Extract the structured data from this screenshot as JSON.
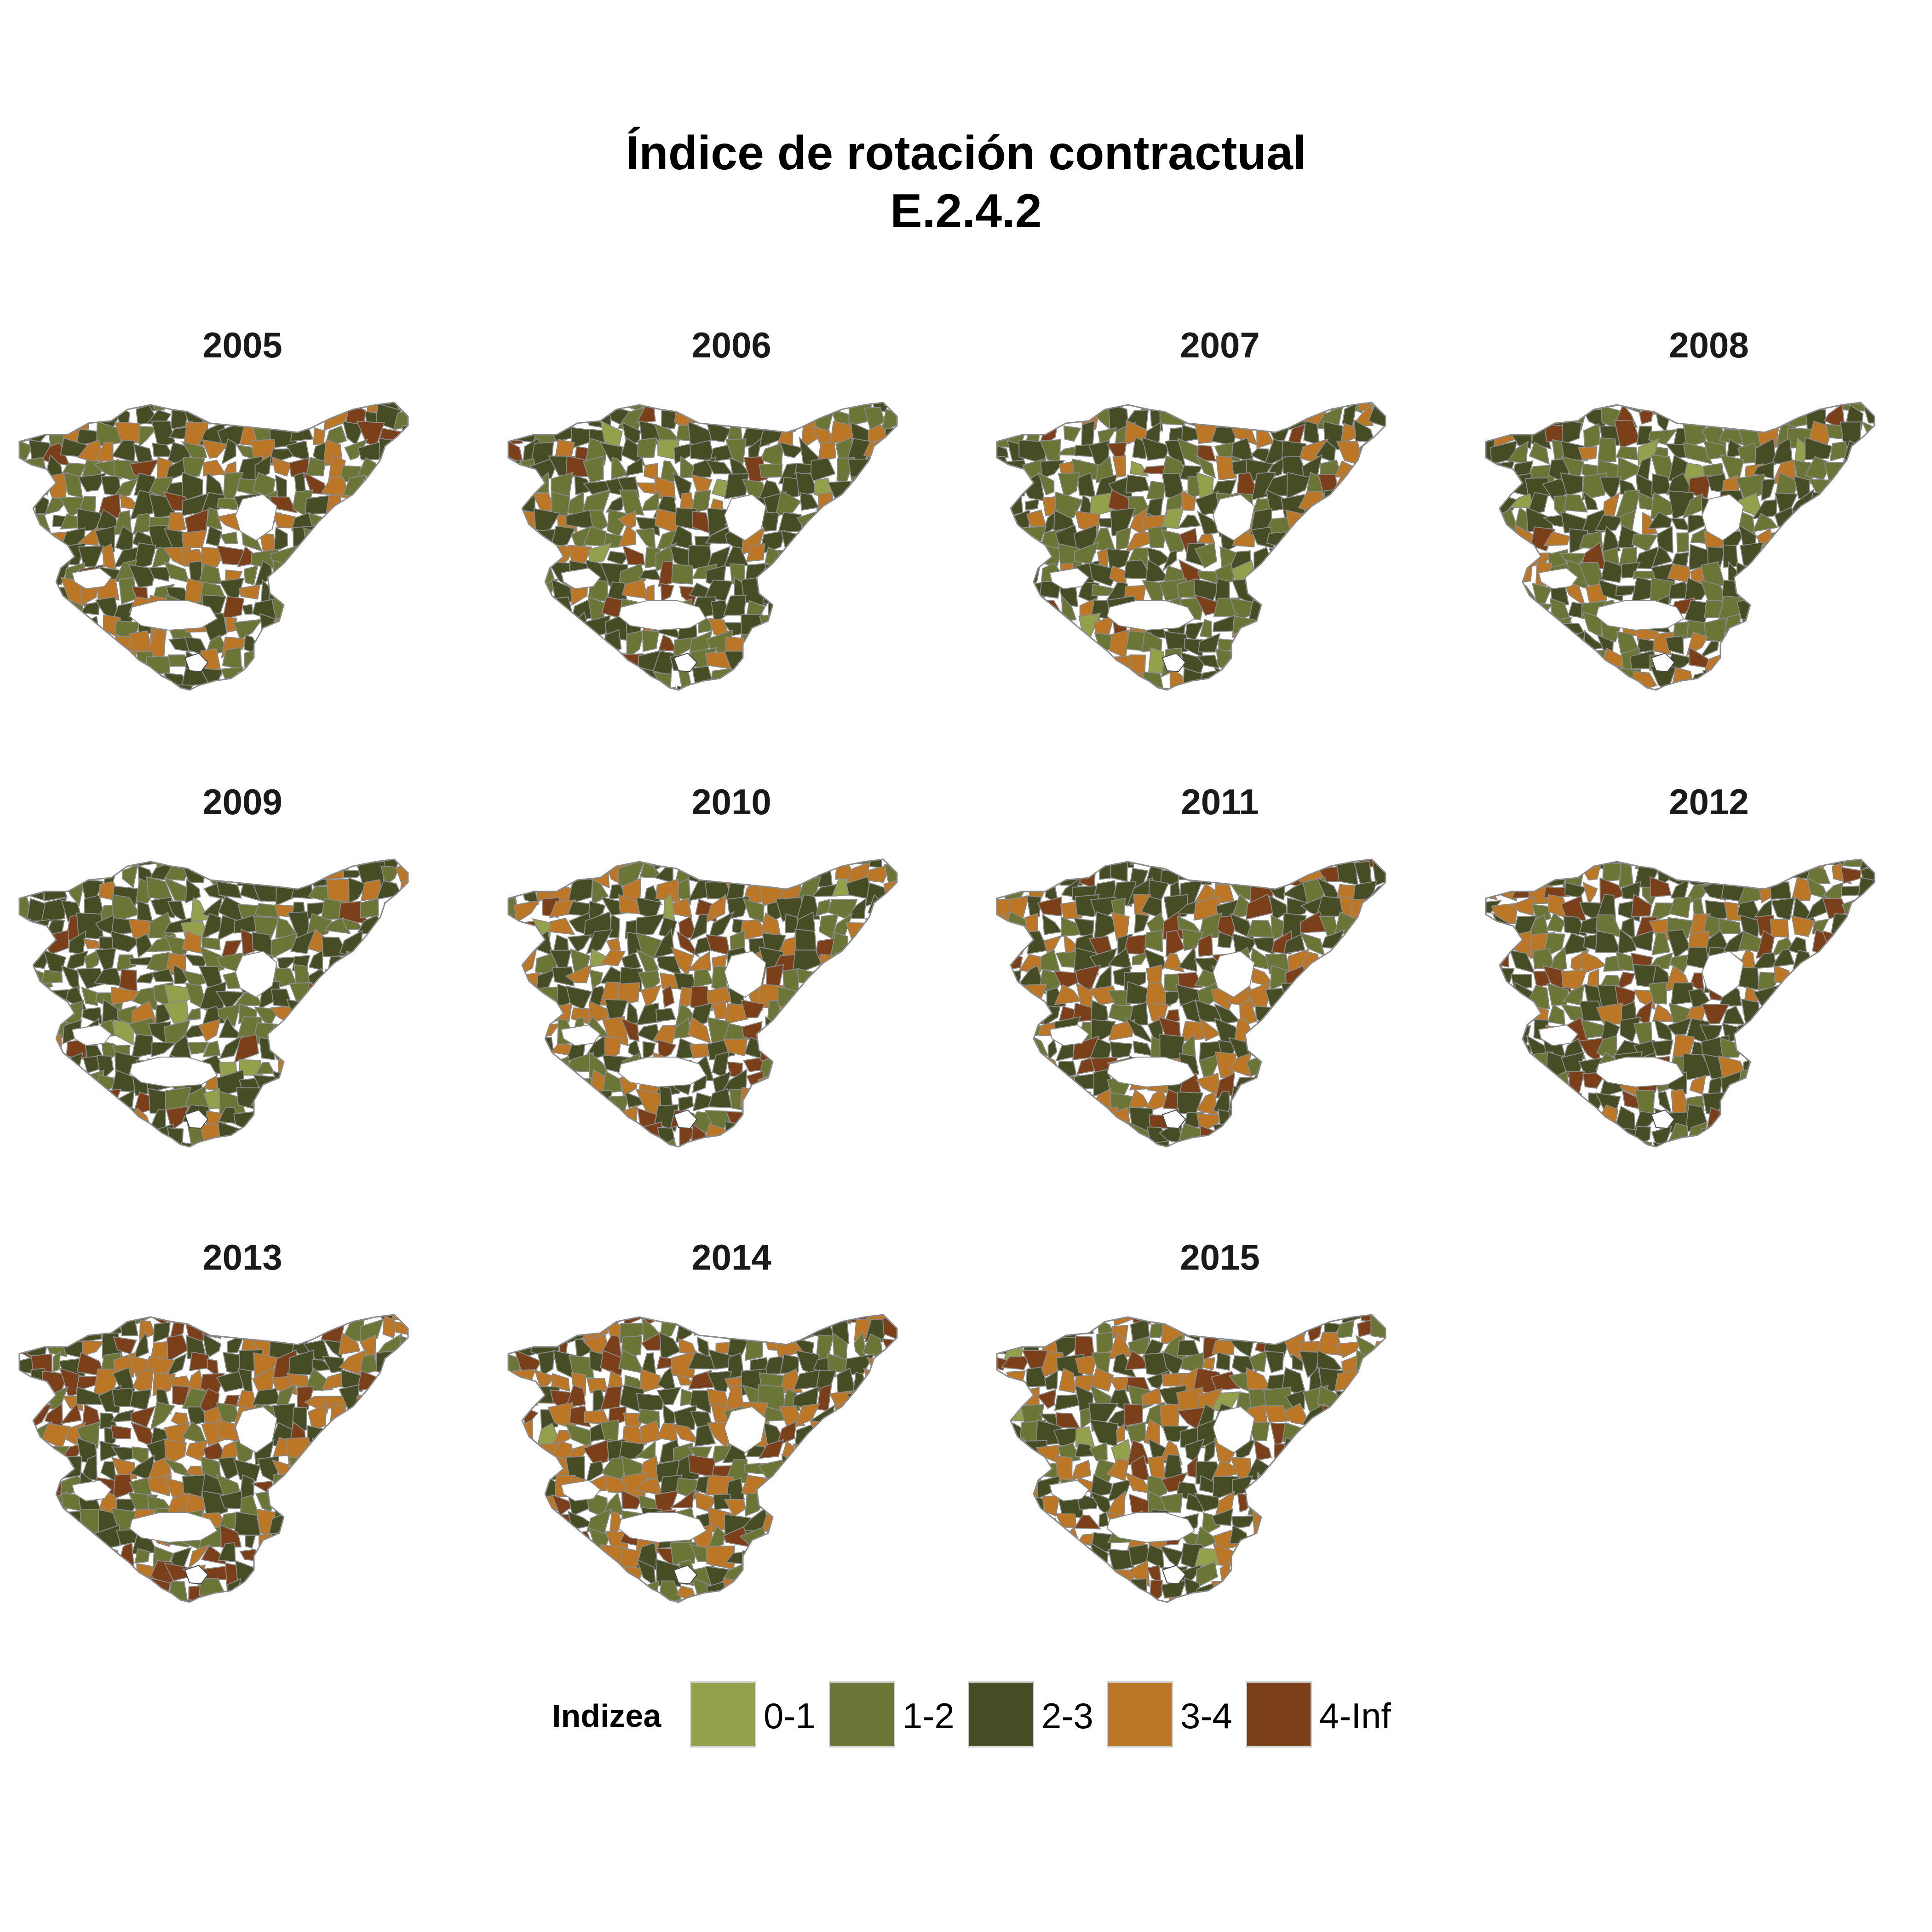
{
  "title": {
    "line1": "Índice de rotación contractual",
    "line2": "E.2.4.2"
  },
  "panels": [
    {
      "year": "2005",
      "mix": [
        0.0,
        0.3,
        0.46,
        0.16,
        0.08
      ]
    },
    {
      "year": "2006",
      "mix": [
        0.03,
        0.33,
        0.44,
        0.14,
        0.06
      ]
    },
    {
      "year": "2007",
      "mix": [
        0.03,
        0.34,
        0.42,
        0.15,
        0.06
      ]
    },
    {
      "year": "2008",
      "mix": [
        0.02,
        0.38,
        0.4,
        0.14,
        0.06
      ]
    },
    {
      "year": "2009",
      "mix": [
        0.03,
        0.32,
        0.46,
        0.13,
        0.06
      ]
    },
    {
      "year": "2010",
      "mix": [
        0.01,
        0.22,
        0.4,
        0.25,
        0.12
      ]
    },
    {
      "year": "2011",
      "mix": [
        0.0,
        0.22,
        0.4,
        0.24,
        0.14
      ]
    },
    {
      "year": "2012",
      "mix": [
        0.0,
        0.25,
        0.46,
        0.18,
        0.11
      ]
    },
    {
      "year": "2013",
      "mix": [
        0.0,
        0.22,
        0.38,
        0.24,
        0.16
      ]
    },
    {
      "year": "2014",
      "mix": [
        0.01,
        0.22,
        0.36,
        0.26,
        0.15
      ]
    },
    {
      "year": "2015",
      "mix": [
        0.02,
        0.2,
        0.34,
        0.26,
        0.18
      ]
    }
  ],
  "legend": {
    "title": "Indizea",
    "items": [
      {
        "label": "0-1",
        "color": "#94a04a"
      },
      {
        "label": "1-2",
        "color": "#6b7535"
      },
      {
        "label": "2-3",
        "color": "#464d24"
      },
      {
        "label": "3-4",
        "color": "#bb7726"
      },
      {
        "label": "4-Inf",
        "color": "#7b3f1a"
      }
    ]
  },
  "colors": {
    "border": "#8a8a8a",
    "hole_outline": "#4a4a4a",
    "background": "#ffffff"
  }
}
